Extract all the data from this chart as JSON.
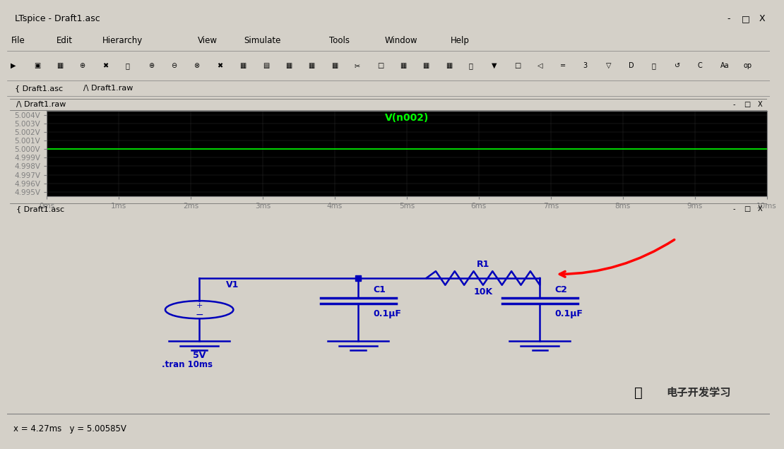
{
  "title_bar": "LTspice - Draft1.asc",
  "menu_items": [
    "File",
    "Edit",
    "Hierarchy",
    "View",
    "Simulate",
    "Tools",
    "Window",
    "Help"
  ],
  "tab1": "Draft1.asc",
  "tab2": "Draft1.raw",
  "waveform_title": "V(n002)",
  "waveform_window_title": "Draft1.raw",
  "schematic_window_title": "Draft1.asc",
  "waveform_bg": "#000000",
  "schematic_bg": "#bdbdbd",
  "outer_bg": "#d4d0c8",
  "green_line_y": 5.0,
  "yticks": [
    4.995,
    4.996,
    4.997,
    4.998,
    4.999,
    5.0,
    5.001,
    5.002,
    5.003,
    5.004
  ],
  "ytick_labels": [
    "4.995V",
    "4.996V",
    "4.997V",
    "4.998V",
    "4.999V",
    "5.000V",
    "5.001V",
    "5.002V",
    "5.003V",
    "5.004V"
  ],
  "xticks": [
    0,
    1,
    2,
    3,
    4,
    5,
    6,
    7,
    8,
    9,
    10
  ],
  "xtick_labels": [
    "0ms",
    "1ms",
    "2ms",
    "3ms",
    "4ms",
    "5ms",
    "6ms",
    "7ms",
    "8ms",
    "9ms",
    "10ms"
  ],
  "status_bar": "x = 4.27ms   y = 5.00585V",
  "waveform_line_color": "#00ff00",
  "axis_color": "#808080",
  "tick_color": "#808080",
  "label_color": "#c0c0c0",
  "titlebar_bg": "#d4d0c8",
  "blue_circuit": "#0000bb"
}
